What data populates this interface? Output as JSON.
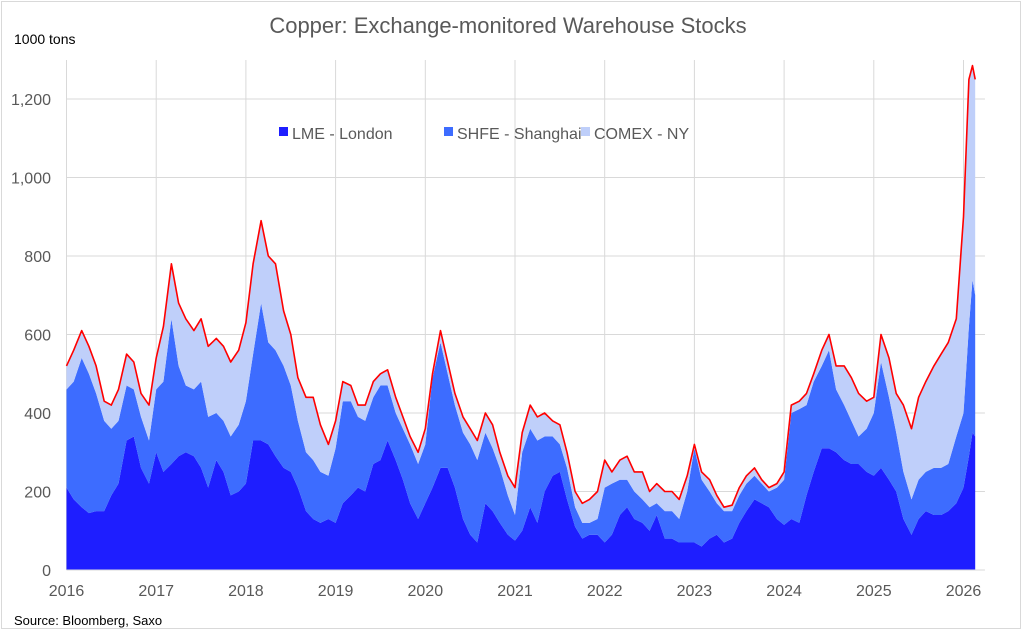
{
  "chart_data": {
    "type": "area",
    "stacked": true,
    "title": "Copper: Exchange-monitored Warehouse Stocks",
    "ylabel": "1000 tons",
    "xlabel": "",
    "source": "Source: Bloomberg, Saxo",
    "ylim": [
      0,
      1300
    ],
    "xlim": [
      2016,
      2026.15
    ],
    "grid": true,
    "legend_placement": "top-center",
    "y_ticks": [
      0,
      200,
      400,
      600,
      800,
      1000,
      1200
    ],
    "y_tick_labels": [
      "0",
      "200",
      "400",
      "600",
      "800",
      "1,000",
      "1,200"
    ],
    "x_ticks": [
      2016,
      2017,
      2018,
      2019,
      2020,
      2021,
      2022,
      2023,
      2024,
      2025,
      2026
    ],
    "x_tick_labels": [
      "2016",
      "2017",
      "2018",
      "2019",
      "2020",
      "2021",
      "2022",
      "2023",
      "2024",
      "2025",
      "2026"
    ],
    "total_line": {
      "name": "Total",
      "color": "#ff0000"
    },
    "x": [
      2016.0,
      2016.08,
      2016.17,
      2016.25,
      2016.33,
      2016.42,
      2016.5,
      2016.58,
      2016.67,
      2016.75,
      2016.83,
      2016.92,
      2017.0,
      2017.08,
      2017.17,
      2017.25,
      2017.33,
      2017.42,
      2017.5,
      2017.58,
      2017.67,
      2017.75,
      2017.83,
      2017.92,
      2018.0,
      2018.08,
      2018.17,
      2018.25,
      2018.33,
      2018.42,
      2018.5,
      2018.58,
      2018.67,
      2018.75,
      2018.83,
      2018.92,
      2019.0,
      2019.08,
      2019.17,
      2019.25,
      2019.33,
      2019.42,
      2019.5,
      2019.58,
      2019.67,
      2019.75,
      2019.83,
      2019.92,
      2020.0,
      2020.08,
      2020.17,
      2020.25,
      2020.33,
      2020.42,
      2020.5,
      2020.58,
      2020.67,
      2020.75,
      2020.83,
      2020.92,
      2021.0,
      2021.08,
      2021.17,
      2021.25,
      2021.33,
      2021.42,
      2021.5,
      2021.58,
      2021.67,
      2021.75,
      2021.83,
      2021.92,
      2022.0,
      2022.08,
      2022.17,
      2022.25,
      2022.33,
      2022.42,
      2022.5,
      2022.58,
      2022.67,
      2022.75,
      2022.83,
      2022.92,
      2023.0,
      2023.08,
      2023.17,
      2023.25,
      2023.33,
      2023.42,
      2023.5,
      2023.58,
      2023.67,
      2023.75,
      2023.83,
      2023.92,
      2024.0,
      2024.08,
      2024.17,
      2024.25,
      2024.33,
      2024.42,
      2024.5,
      2024.58,
      2024.67,
      2024.75,
      2024.83,
      2024.92,
      2025.0,
      2025.08,
      2025.17,
      2025.25,
      2025.33,
      2025.42,
      2025.5,
      2025.58,
      2025.67,
      2025.75,
      2025.83,
      2025.92,
      2026.0,
      2026.06,
      2026.1,
      2026.13
    ],
    "series": [
      {
        "name": "LME - London",
        "color": "#1e1eff",
        "values": [
          210,
          180,
          160,
          145,
          150,
          150,
          190,
          220,
          330,
          340,
          260,
          220,
          300,
          250,
          270,
          290,
          300,
          290,
          260,
          210,
          280,
          250,
          190,
          200,
          220,
          330,
          330,
          320,
          290,
          260,
          250,
          210,
          150,
          130,
          120,
          130,
          120,
          170,
          190,
          210,
          200,
          270,
          280,
          330,
          280,
          230,
          170,
          130,
          170,
          210,
          260,
          260,
          210,
          130,
          90,
          70,
          170,
          150,
          120,
          90,
          75,
          100,
          160,
          120,
          200,
          240,
          250,
          180,
          110,
          80,
          90,
          90,
          70,
          90,
          140,
          160,
          130,
          120,
          100,
          140,
          80,
          80,
          70,
          70,
          70,
          60,
          80,
          90,
          70,
          80,
          120,
          150,
          180,
          170,
          160,
          130,
          115,
          130,
          120,
          190,
          250,
          310,
          310,
          300,
          280,
          270,
          270,
          250,
          240,
          260,
          230,
          200,
          130,
          90,
          130,
          150,
          140,
          140,
          150,
          170,
          210,
          290,
          350,
          340
        ]
      },
      {
        "name": "SHFE - Shanghai",
        "color": "#3d6cff",
        "values": [
          250,
          300,
          380,
          355,
          300,
          230,
          170,
          160,
          140,
          120,
          130,
          110,
          160,
          230,
          370,
          230,
          170,
          170,
          220,
          180,
          120,
          130,
          150,
          170,
          210,
          220,
          350,
          260,
          270,
          260,
          220,
          170,
          150,
          150,
          130,
          110,
          190,
          260,
          240,
          180,
          180,
          170,
          190,
          140,
          120,
          130,
          150,
          140,
          150,
          280,
          320,
          240,
          210,
          220,
          230,
          210,
          180,
          160,
          140,
          100,
          65,
          200,
          200,
          210,
          140,
          100,
          70,
          80,
          50,
          40,
          30,
          40,
          140,
          130,
          90,
          70,
          70,
          60,
          60,
          30,
          70,
          70,
          60,
          130,
          240,
          170,
          120,
          80,
          80,
          70,
          70,
          70,
          60,
          50,
          40,
          80,
          115,
          270,
          290,
          230,
          230,
          210,
          250,
          160,
          140,
          110,
          70,
          110,
          160,
          270,
          210,
          150,
          120,
          90,
          100,
          100,
          120,
          120,
          120,
          170,
          190,
          330,
          390,
          360
        ]
      },
      {
        "name": "COMEX - NY",
        "color": "#bfcffa",
        "values": [
          60,
          80,
          70,
          70,
          70,
          50,
          60,
          80,
          80,
          70,
          60,
          90,
          80,
          140,
          140,
          160,
          170,
          150,
          160,
          180,
          190,
          190,
          190,
          190,
          200,
          230,
          210,
          220,
          220,
          140,
          130,
          110,
          140,
          160,
          120,
          80,
          70,
          50,
          40,
          30,
          40,
          40,
          30,
          40,
          40,
          30,
          20,
          30,
          40,
          10,
          30,
          30,
          30,
          40,
          40,
          50,
          50,
          60,
          40,
          50,
          70,
          50,
          60,
          60,
          60,
          40,
          50,
          40,
          40,
          50,
          60,
          70,
          70,
          30,
          50,
          60,
          50,
          70,
          40,
          50,
          50,
          50,
          50,
          40,
          10,
          20,
          30,
          20,
          10,
          15,
          20,
          20,
          20,
          10,
          10,
          10,
          20,
          20,
          20,
          30,
          20,
          40,
          40,
          60,
          100,
          110,
          110,
          70,
          40,
          70,
          100,
          100,
          170,
          180,
          210,
          230,
          260,
          290,
          310,
          300,
          500,
          630,
          545,
          550
        ]
      }
    ]
  }
}
